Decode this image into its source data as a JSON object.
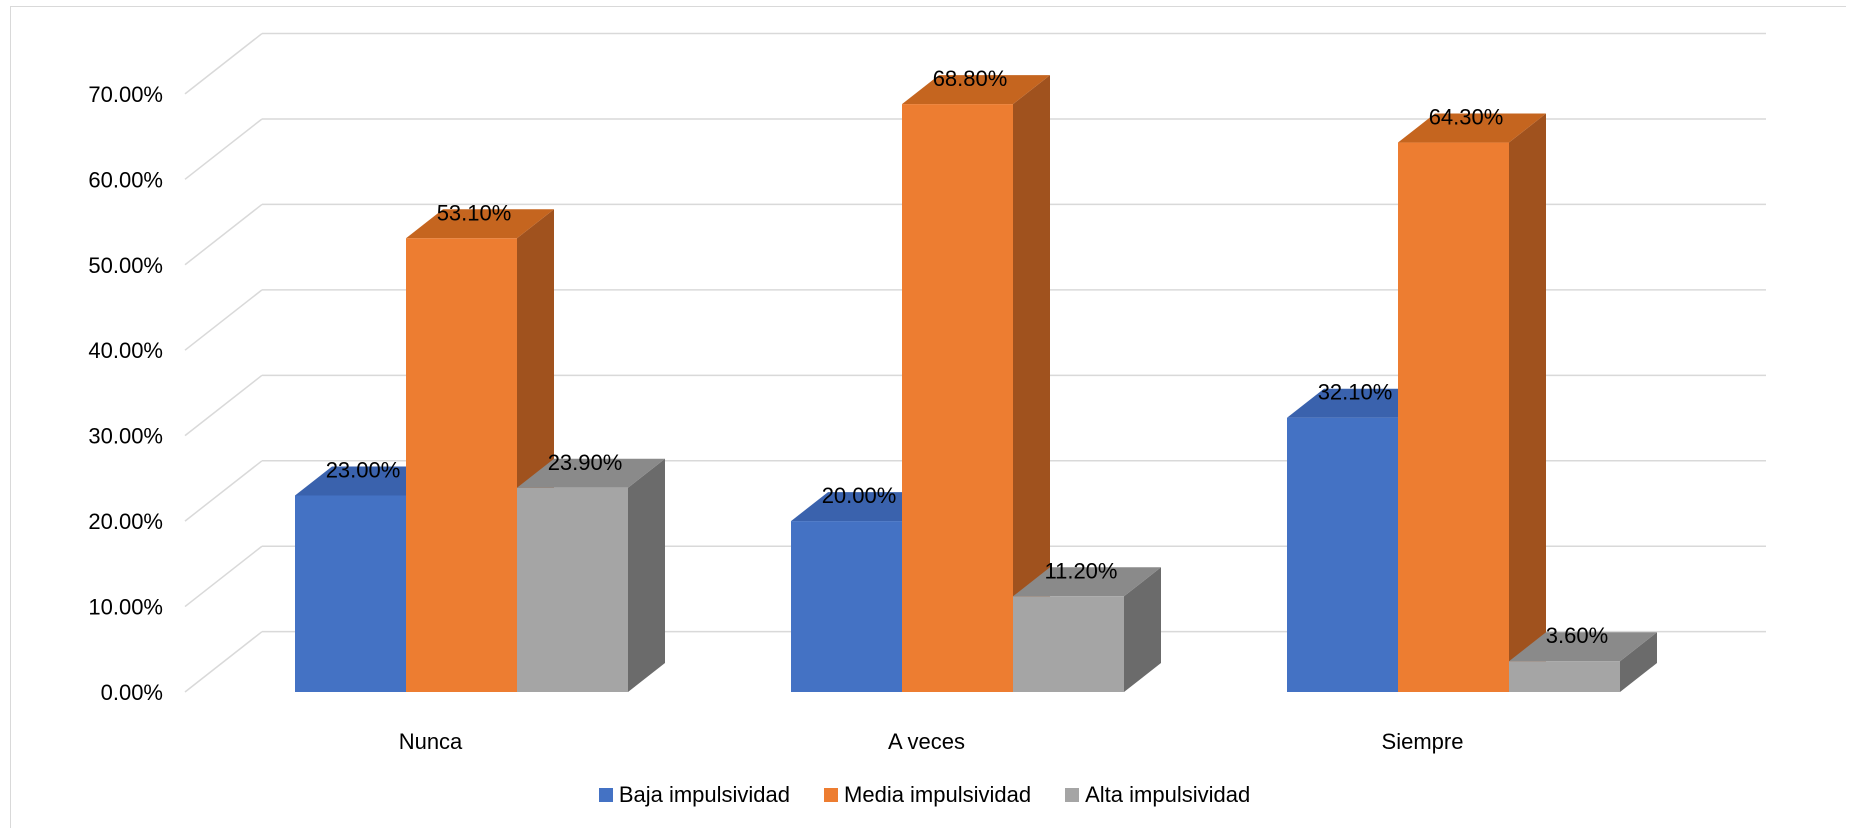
{
  "chart_data": {
    "type": "bar",
    "style": "3d-clustered-column",
    "categories": [
      "Nunca",
      "A veces",
      "Siempre"
    ],
    "series": [
      {
        "name": "Baja impulsividad",
        "values": [
          23.0,
          20.0,
          32.1
        ],
        "labels": [
          "23.00%",
          "20.00%",
          "32.10%"
        ],
        "color": "#4472C4"
      },
      {
        "name": "Media impulsividad",
        "values": [
          53.1,
          68.8,
          64.3
        ],
        "labels": [
          "53.10%",
          "68.80%",
          "64.30%"
        ],
        "color": "#ED7D31"
      },
      {
        "name": "Alta impulsividad",
        "values": [
          23.9,
          11.2,
          3.6
        ],
        "labels": [
          "23.90%",
          "11.20%",
          "3.60%"
        ],
        "color": "#A5A5A5"
      }
    ],
    "y_ticks": [
      "0.00%",
      "10.00%",
      "20.00%",
      "30.00%",
      "40.00%",
      "50.00%",
      "60.00%",
      "70.00%"
    ],
    "ylim": [
      0,
      70
    ],
    "grid": true,
    "legend_position": "bottom"
  }
}
